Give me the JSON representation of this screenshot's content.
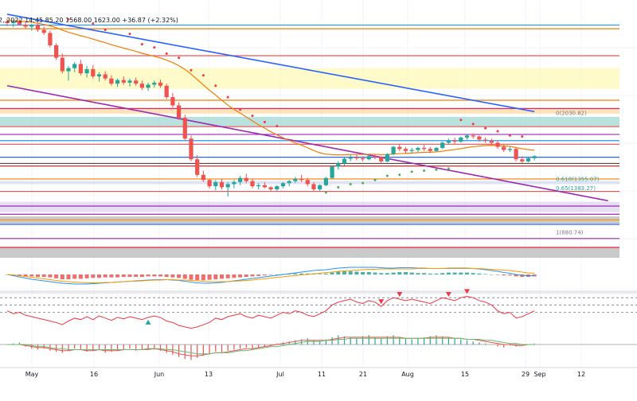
{
  "header": {
    "legend_text": "2, 2022 14:45  85.20  1568.00  1623.00  +36.87 (+2.32%)"
  },
  "colors": {
    "up": "#26a69a",
    "down": "#ef5350",
    "blue_line": "#2962ff",
    "purple_line": "#9c27b0",
    "orange_line": "#f57c00",
    "psar_red": "#f23645",
    "psar_green": "#4caf50",
    "macd_line": "#2196f3",
    "signal_line": "#ff9800",
    "rsi_line": "#f23645"
  },
  "annotations": [
    {
      "id": "fib-0",
      "text": "0(2030.82)"
    },
    {
      "id": "fib-0618",
      "text": "0.618(1395.07)"
    },
    {
      "id": "fib-065",
      "text": "0.65(1383.27)"
    },
    {
      "id": "fib-1",
      "text": "1(880.74)"
    }
  ],
  "chart_data": {
    "type": "candlestick",
    "x_tick_labels": [
      "May",
      "16",
      "Jun",
      "13",
      "Jul",
      "11",
      "21",
      "Aug",
      "15",
      "29",
      "Sep",
      "12"
    ],
    "candles_ohlc": [
      [
        2950,
        2975,
        2905,
        2935
      ],
      [
        2935,
        2960,
        2895,
        2948
      ],
      [
        2948,
        2970,
        2910,
        2920
      ],
      [
        2920,
        2945,
        2880,
        2900
      ],
      [
        2900,
        2930,
        2860,
        2915
      ],
      [
        2915,
        2935,
        2850,
        2870
      ],
      [
        2870,
        2900,
        2820,
        2840
      ],
      [
        2840,
        2860,
        2700,
        2720
      ],
      [
        2720,
        2740,
        2580,
        2600
      ],
      [
        2600,
        2640,
        2450,
        2470
      ],
      [
        2470,
        2520,
        2380,
        2500
      ],
      [
        2500,
        2560,
        2460,
        2540
      ],
      [
        2540,
        2580,
        2430,
        2450
      ],
      [
        2450,
        2520,
        2410,
        2490
      ],
      [
        2490,
        2530,
        2400,
        2420
      ],
      [
        2420,
        2460,
        2370,
        2440
      ],
      [
        2440,
        2470,
        2380,
        2400
      ],
      [
        2400,
        2430,
        2330,
        2350
      ],
      [
        2350,
        2400,
        2320,
        2385
      ],
      [
        2385,
        2420,
        2340,
        2360
      ],
      [
        2360,
        2400,
        2320,
        2380
      ],
      [
        2380,
        2410,
        2330,
        2350
      ],
      [
        2350,
        2380,
        2290,
        2310
      ],
      [
        2310,
        2360,
        2280,
        2340
      ],
      [
        2340,
        2380,
        2310,
        2360
      ],
      [
        2360,
        2390,
        2310,
        2330
      ],
      [
        2330,
        2350,
        2200,
        2220
      ],
      [
        2220,
        2260,
        2120,
        2140
      ],
      [
        2140,
        2170,
        2000,
        2020
      ],
      [
        2020,
        2050,
        1800,
        1820
      ],
      [
        1820,
        1850,
        1600,
        1620
      ],
      [
        1620,
        1660,
        1450,
        1470
      ],
      [
        1470,
        1510,
        1400,
        1420
      ],
      [
        1420,
        1430,
        1340,
        1360
      ],
      [
        1360,
        1420,
        1320,
        1400
      ],
      [
        1400,
        1430,
        1330,
        1350
      ],
      [
        1350,
        1400,
        1260,
        1380
      ],
      [
        1380,
        1420,
        1340,
        1400
      ],
      [
        1400,
        1460,
        1370,
        1440
      ],
      [
        1440,
        1480,
        1390,
        1410
      ],
      [
        1410,
        1430,
        1340,
        1360
      ],
      [
        1360,
        1390,
        1330,
        1370
      ],
      [
        1370,
        1400,
        1340,
        1350
      ],
      [
        1350,
        1360,
        1310,
        1330
      ],
      [
        1330,
        1370,
        1310,
        1360
      ],
      [
        1360,
        1400,
        1340,
        1390
      ],
      [
        1390,
        1420,
        1360,
        1410
      ],
      [
        1410,
        1450,
        1390,
        1430
      ],
      [
        1430,
        1470,
        1400,
        1420
      ],
      [
        1420,
        1440,
        1360,
        1380
      ],
      [
        1380,
        1400,
        1310,
        1330
      ],
      [
        1330,
        1380,
        1310,
        1370
      ],
      [
        1370,
        1450,
        1360,
        1440
      ],
      [
        1440,
        1560,
        1430,
        1550
      ],
      [
        1550,
        1600,
        1520,
        1580
      ],
      [
        1580,
        1640,
        1560,
        1625
      ],
      [
        1625,
        1660,
        1600,
        1640
      ],
      [
        1640,
        1670,
        1610,
        1630
      ],
      [
        1630,
        1650,
        1600,
        1620
      ],
      [
        1620,
        1660,
        1610,
        1650
      ],
      [
        1650,
        1670,
        1620,
        1640
      ],
      [
        1640,
        1650,
        1580,
        1600
      ],
      [
        1600,
        1680,
        1590,
        1670
      ],
      [
        1670,
        1750,
        1660,
        1740
      ],
      [
        1740,
        1770,
        1700,
        1720
      ],
      [
        1720,
        1740,
        1680,
        1700
      ],
      [
        1700,
        1730,
        1680,
        1710
      ],
      [
        1710,
        1740,
        1690,
        1730
      ],
      [
        1730,
        1760,
        1700,
        1720
      ],
      [
        1720,
        1740,
        1680,
        1700
      ],
      [
        1700,
        1740,
        1690,
        1730
      ],
      [
        1730,
        1790,
        1720,
        1780
      ],
      [
        1780,
        1820,
        1760,
        1800
      ],
      [
        1800,
        1830,
        1770,
        1790
      ],
      [
        1790,
        1840,
        1780,
        1830
      ],
      [
        1830,
        1860,
        1810,
        1850
      ],
      [
        1850,
        1870,
        1820,
        1840
      ],
      [
        1840,
        1850,
        1790,
        1810
      ],
      [
        1810,
        1830,
        1780,
        1800
      ],
      [
        1800,
        1820,
        1760,
        1780
      ],
      [
        1780,
        1800,
        1720,
        1740
      ],
      [
        1740,
        1760,
        1690,
        1710
      ],
      [
        1710,
        1740,
        1690,
        1720
      ],
      [
        1720,
        1730,
        1600,
        1620
      ],
      [
        1620,
        1650,
        1580,
        1600
      ],
      [
        1600,
        1640,
        1590,
        1630
      ],
      [
        1630,
        1660,
        1610,
        1650
      ]
    ],
    "ylim": [
      700,
      3050
    ],
    "fib_levels": [
      {
        "label": "0",
        "value": 2030.82
      },
      {
        "label": "0.618",
        "value": 1395.07
      },
      {
        "label": "0.65",
        "value": 1383.27
      },
      {
        "label": "1",
        "value": 880.74
      }
    ],
    "horizontal_levels": [
      {
        "value": 2915,
        "color": "#2196f3"
      },
      {
        "value": 2880,
        "color": "#f57c00"
      },
      {
        "value": 2620,
        "color": "#ef5350"
      },
      {
        "value": 2190,
        "color": "#f57c00"
      },
      {
        "value": 2110,
        "color": "#e91e63"
      },
      {
        "value": 1935,
        "color": "#ef5350"
      },
      {
        "value": 1860,
        "color": "#9c27b0"
      },
      {
        "value": 1800,
        "color": "#2196f3"
      },
      {
        "value": 1765,
        "color": "#ef5350"
      },
      {
        "value": 1640,
        "color": "#2962ff"
      },
      {
        "value": 1580,
        "color": "#5d4037"
      },
      {
        "value": 1555,
        "color": "#b71c1c"
      },
      {
        "value": 1430,
        "color": "#f57c00"
      },
      {
        "value": 1310,
        "color": "#ef5350"
      },
      {
        "value": 1090,
        "color": "#9c27b0"
      },
      {
        "value": 1035,
        "color": "#ff9800"
      },
      {
        "value": 855,
        "color": "#9c27b0"
      }
    ],
    "zones": [
      {
        "from": 2300,
        "to": 2500,
        "color": "#fff59d"
      },
      {
        "from": 2060,
        "to": 2110,
        "color": "#ffcc80"
      },
      {
        "from": 1935,
        "to": 2030,
        "color": "#80cbc4"
      },
      {
        "from": 1380,
        "to": 1410,
        "color": "#c5cae9"
      },
      {
        "from": 1110,
        "to": 1210,
        "color": "#d1c4e9"
      }
    ],
    "trendlines": [
      {
        "from": [
          0,
          3020
        ],
        "to": [
          86,
          2080
        ],
        "color": "#2962ff"
      },
      {
        "from": [
          0,
          2330
        ],
        "to": [
          98,
          1220
        ],
        "color": "#9c27b0"
      }
    ],
    "ema_values": [
      2960,
      2958,
      2954,
      2948,
      2942,
      2933,
      2922,
      2908,
      2890,
      2866,
      2846,
      2830,
      2812,
      2798,
      2780,
      2762,
      2745,
      2726,
      2710,
      2693,
      2678,
      2662,
      2644,
      2628,
      2614,
      2598,
      2577,
      2553,
      2524,
      2488,
      2442,
      2390,
      2338,
      2286,
      2240,
      2190,
      2143,
      2102,
      2066,
      2029,
      1990,
      1954,
      1920,
      1886,
      1856,
      1828,
      1802,
      1779,
      1756,
      1731,
      1705,
      1683,
      1669,
      1665,
      1663,
      1664,
      1666,
      1667,
      1667,
      1668,
      1668,
      1665,
      1665,
      1671,
      1675,
      1677,
      1680,
      1684,
      1687,
      1688,
      1691,
      1698,
      1707,
      1714,
      1723,
      1733,
      1742,
      1747,
      1752,
      1754,
      1752,
      1748,
      1745,
      1733,
      1722,
      1713,
      1709
    ],
    "psar_red": [
      [
        10,
        2970
      ],
      [
        14,
        2930
      ],
      [
        16,
        2870
      ],
      [
        20,
        2830
      ],
      [
        22,
        2730
      ],
      [
        24,
        2700
      ],
      [
        26,
        2640
      ],
      [
        28,
        2600
      ],
      [
        30,
        2480
      ],
      [
        32,
        2430
      ],
      [
        34,
        2330
      ],
      [
        36,
        2220
      ],
      [
        38,
        2100
      ],
      [
        40,
        2040
      ],
      [
        42,
        1980
      ],
      [
        44,
        1940
      ],
      [
        74,
        2000
      ],
      [
        76,
        1960
      ],
      [
        78,
        1920
      ],
      [
        80,
        1890
      ],
      [
        82,
        1850
      ],
      [
        84,
        1840
      ]
    ],
    "psar_green": [
      [
        52,
        1300
      ],
      [
        54,
        1350
      ],
      [
        56,
        1380
      ],
      [
        58,
        1390
      ],
      [
        60,
        1420
      ],
      [
        62,
        1460
      ],
      [
        64,
        1470
      ],
      [
        66,
        1500
      ],
      [
        68,
        1510
      ],
      [
        70,
        1520
      ],
      [
        72,
        1530
      ]
    ],
    "indicators": {
      "macd_hist": [
        0,
        -2,
        -3,
        -4,
        -4,
        -5,
        -5,
        -6,
        -8,
        -10,
        -10,
        -9,
        -9,
        -8,
        -7,
        -7,
        -6,
        -6,
        -6,
        -5,
        -5,
        -5,
        -5,
        -4,
        -4,
        -4,
        -5,
        -6,
        -7,
        -9,
        -11,
        -12,
        -12,
        -11,
        -10,
        -9,
        -8,
        -7,
        -6,
        -5,
        -4,
        -3,
        -2,
        -1,
        0,
        1,
        1,
        2,
        2,
        2,
        1,
        1,
        2,
        4,
        6,
        7,
        7,
        6,
        5,
        5,
        4,
        3,
        3,
        4,
        5,
        5,
        4,
        3,
        3,
        2,
        2,
        3,
        4,
        4,
        4,
        4,
        3,
        2,
        1,
        0,
        -1,
        -2,
        -2,
        -4,
        -5,
        -5,
        -4
      ],
      "macd_line": [
        0,
        -3,
        -6,
        -9,
        -12,
        -14,
        -16,
        -18,
        -20,
        -22,
        -23,
        -24,
        -24,
        -24,
        -23,
        -22,
        -21,
        -20,
        -19,
        -18,
        -17,
        -16,
        -15,
        -14,
        -13,
        -13,
        -13,
        -14,
        -15,
        -17,
        -19,
        -21,
        -22,
        -22,
        -21,
        -20,
        -18,
        -16,
        -14,
        -12,
        -10,
        -8,
        -6,
        -4,
        -2,
        0,
        2,
        4,
        6,
        8,
        10,
        11,
        12,
        14,
        16,
        17,
        18,
        18,
        18,
        18,
        18,
        17,
        16,
        16,
        17,
        17,
        17,
        16,
        16,
        15,
        15,
        15,
        16,
        16,
        16,
        16,
        15,
        14,
        12,
        10,
        8,
        5,
        3,
        0,
        -2,
        -3,
        -3
      ],
      "signal_line": [
        0,
        -1,
        -3,
        -5,
        -7,
        -9,
        -11,
        -13,
        -15,
        -17,
        -18,
        -19,
        -20,
        -21,
        -21,
        -21,
        -20,
        -20,
        -19,
        -18,
        -17,
        -17,
        -16,
        -15,
        -14,
        -14,
        -13,
        -13,
        -14,
        -14,
        -15,
        -16,
        -17,
        -18,
        -18,
        -18,
        -18,
        -17,
        -16,
        -15,
        -14,
        -12,
        -11,
        -9,
        -7,
        -6,
        -4,
        -3,
        -1,
        0,
        2,
        3,
        5,
        6,
        8,
        9,
        10,
        11,
        12,
        13,
        13,
        14,
        14,
        14,
        14,
        14,
        14,
        15,
        15,
        15,
        15,
        15,
        15,
        15,
        15,
        15,
        15,
        15,
        14,
        13,
        12,
        11,
        10,
        8,
        6,
        4,
        3
      ],
      "rsi_values": [
        52,
        48,
        50,
        46,
        44,
        42,
        40,
        38,
        36,
        33,
        38,
        42,
        40,
        44,
        40,
        45,
        42,
        39,
        43,
        41,
        44,
        42,
        40,
        43,
        45,
        43,
        38,
        36,
        32,
        30,
        28,
        30,
        33,
        36,
        42,
        40,
        44,
        46,
        48,
        44,
        42,
        46,
        44,
        42,
        46,
        50,
        48,
        52,
        50,
        46,
        44,
        48,
        52,
        60,
        64,
        66,
        68,
        64,
        62,
        66,
        64,
        58,
        66,
        70,
        68,
        66,
        68,
        66,
        64,
        62,
        66,
        70,
        68,
        66,
        70,
        72,
        70,
        66,
        64,
        60,
        52,
        48,
        50,
        42,
        44,
        48,
        52
      ],
      "rsi_levels": [
        70,
        60,
        50
      ],
      "rsi_sell_signals": [
        61,
        64,
        72,
        75
      ],
      "rsi_buy_signals": [
        23
      ],
      "osc_hist": [
        0,
        1,
        2,
        -2,
        -4,
        -5,
        -4,
        -6,
        -7,
        -8,
        -6,
        -4,
        -5,
        -7,
        -6,
        -5,
        -8,
        -7,
        -6,
        -5,
        -4,
        -6,
        -5,
        -4,
        -5,
        -6,
        -8,
        -10,
        -12,
        -14,
        -15,
        -13,
        -11,
        -9,
        -7,
        -8,
        -6,
        -5,
        -4,
        -3,
        -4,
        -3,
        -2,
        -1,
        1,
        2,
        3,
        4,
        5,
        6,
        4,
        3,
        5,
        7,
        9,
        8,
        7,
        6,
        8,
        9,
        7,
        6,
        8,
        9,
        7,
        6,
        5,
        6,
        7,
        8,
        9,
        8,
        7,
        6,
        5,
        4,
        3,
        2,
        1,
        0,
        -2,
        -3,
        -1,
        -2,
        -1,
        0,
        1
      ],
      "osc_line1": [
        0,
        0,
        0,
        -1,
        -2,
        -3,
        -3,
        -4,
        -5,
        -6,
        -6,
        -5,
        -5,
        -6,
        -6,
        -5,
        -6,
        -6,
        -6,
        -5,
        -5,
        -5,
        -5,
        -4,
        -4,
        -5,
        -6,
        -7,
        -9,
        -10,
        -11,
        -11,
        -10,
        -9,
        -8,
        -8,
        -7,
        -6,
        -5,
        -4,
        -4,
        -3,
        -2,
        -1,
        0,
        1,
        2,
        3,
        4,
        4,
        4,
        4,
        4,
        5,
        6,
        7,
        7,
        7,
        7,
        7,
        7,
        7,
        7,
        7,
        7,
        6,
        6,
        6,
        6,
        7,
        7,
        7,
        7,
        6,
        6,
        5,
        5,
        4,
        3,
        2,
        1,
        0,
        0,
        -1,
        -1,
        0,
        0
      ],
      "osc_line2": [
        0,
        0,
        0,
        0,
        -1,
        -2,
        -2,
        -3,
        -4,
        -4,
        -5,
        -5,
        -5,
        -5,
        -5,
        -5,
        -5,
        -5,
        -5,
        -5,
        -5,
        -5,
        -5,
        -5,
        -4,
        -4,
        -5,
        -5,
        -6,
        -7,
        -8,
        -9,
        -9,
        -9,
        -8,
        -8,
        -8,
        -7,
        -6,
        -6,
        -5,
        -4,
        -3,
        -2,
        -2,
        -1,
        0,
        1,
        2,
        3,
        3,
        3,
        4,
        4,
        5,
        5,
        6,
        6,
        6,
        6,
        6,
        6,
        6,
        6,
        6,
        6,
        6,
        6,
        6,
        6,
        6,
        6,
        6,
        6,
        6,
        5,
        5,
        5,
        4,
        4,
        3,
        2,
        1,
        1,
        0,
        0,
        0
      ]
    }
  }
}
